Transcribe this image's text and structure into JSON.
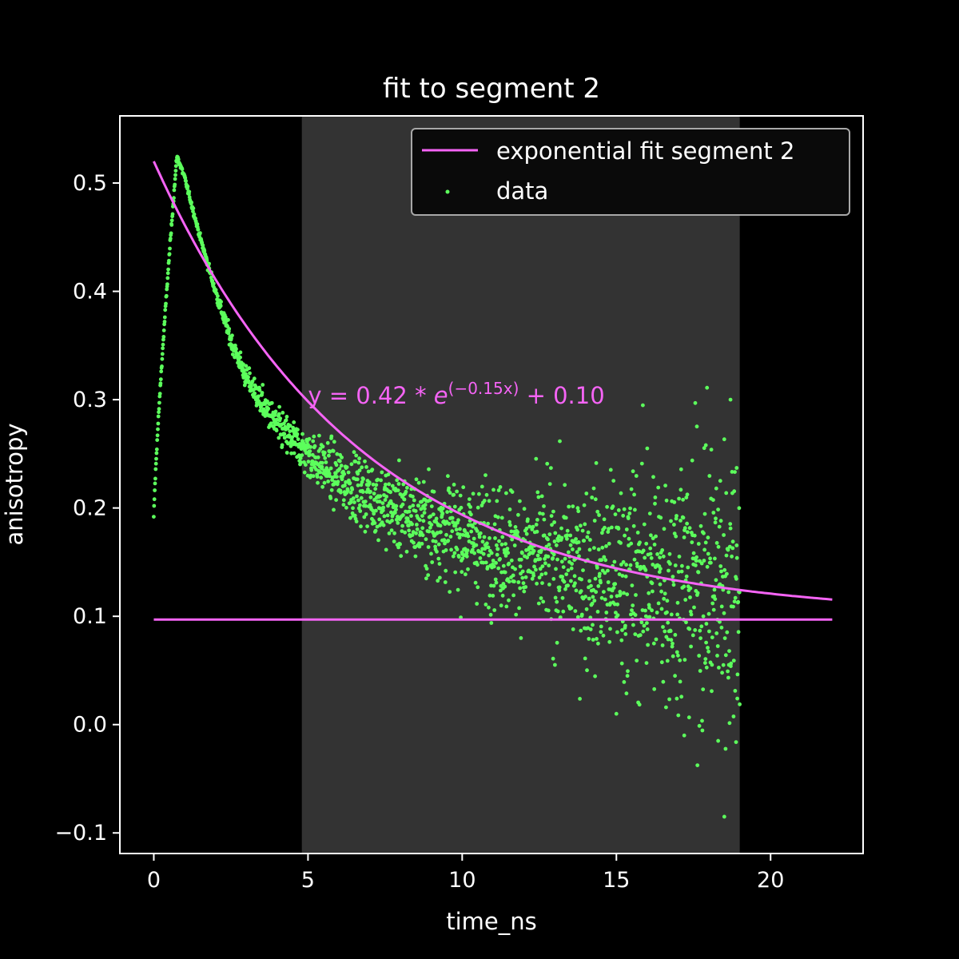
{
  "chart_data": {
    "type": "scatter",
    "title": "fit to segment 2",
    "xlabel": "time_ns",
    "ylabel": "anisotropy",
    "xlim": [
      -1.1,
      23.0
    ],
    "ylim": [
      -0.119,
      0.562
    ],
    "x_ticks": [
      0,
      5,
      10,
      15,
      20
    ],
    "x_tick_labels": [
      "0",
      "5",
      "10",
      "15",
      "20"
    ],
    "y_ticks": [
      -0.1,
      0.0,
      0.1,
      0.2,
      0.3,
      0.4,
      0.5
    ],
    "y_tick_labels": [
      "−0.1",
      "0.0",
      "0.1",
      "0.2",
      "0.3",
      "0.4",
      "0.5"
    ],
    "highlighted_segment": {
      "x_start": 4.8,
      "x_end": 19.0,
      "color": "#333333"
    },
    "fit": {
      "name": "exponential fit segment 2",
      "model": "y = a * exp(-b * x) + c",
      "a": 0.42,
      "b": 0.15,
      "c": 0.1,
      "x_range": [
        0,
        22
      ],
      "color": "#f564f5"
    },
    "baseline": {
      "y": 0.097,
      "x_range": [
        0,
        22
      ],
      "color": "#f564f5"
    },
    "annotation": {
      "prefix": "y = 0.42 * ",
      "base": "e",
      "exponent": "(−0.15x)",
      "suffix": " + 0.10",
      "x": 5.0,
      "y": 0.3,
      "color": "#f564f5"
    },
    "data_series": {
      "name": "data",
      "color": "#5cff5c",
      "rise": {
        "x_start": 0.0,
        "x_peak": 0.75,
        "y_start": 0.19,
        "y_peak": 0.525
      },
      "decay_checkpoints": [
        {
          "x": 0.75,
          "y": 0.525
        },
        {
          "x": 1.0,
          "y": 0.505
        },
        {
          "x": 1.5,
          "y": 0.45
        },
        {
          "x": 2.0,
          "y": 0.4
        },
        {
          "x": 2.5,
          "y": 0.355
        },
        {
          "x": 3.0,
          "y": 0.32
        },
        {
          "x": 4.0,
          "y": 0.275
        },
        {
          "x": 5.0,
          "y": 0.25
        },
        {
          "x": 6.0,
          "y": 0.228
        },
        {
          "x": 8.0,
          "y": 0.195
        },
        {
          "x": 10.0,
          "y": 0.175
        },
        {
          "x": 12.0,
          "y": 0.158
        },
        {
          "x": 14.0,
          "y": 0.142
        },
        {
          "x": 16.0,
          "y": 0.135
        },
        {
          "x": 19.0,
          "y": 0.13
        }
      ],
      "noise_growth_per_ns": 0.0038,
      "x_range": [
        0,
        19
      ],
      "n_points": 1900,
      "outliers": [
        {
          "x": 18.7,
          "y": 0.3
        },
        {
          "x": 16.0,
          "y": 0.255
        },
        {
          "x": 17.9,
          "y": 0.258
        },
        {
          "x": 18.9,
          "y": 0.237
        },
        {
          "x": 18.5,
          "y": -0.085
        },
        {
          "x": 18.3,
          "y": -0.015
        },
        {
          "x": 17.2,
          "y": -0.01
        },
        {
          "x": 15.0,
          "y": 0.01
        }
      ]
    },
    "legend": {
      "placement": "upper right",
      "entries": [
        "exponential fit segment 2",
        "data"
      ]
    },
    "grid": false
  }
}
